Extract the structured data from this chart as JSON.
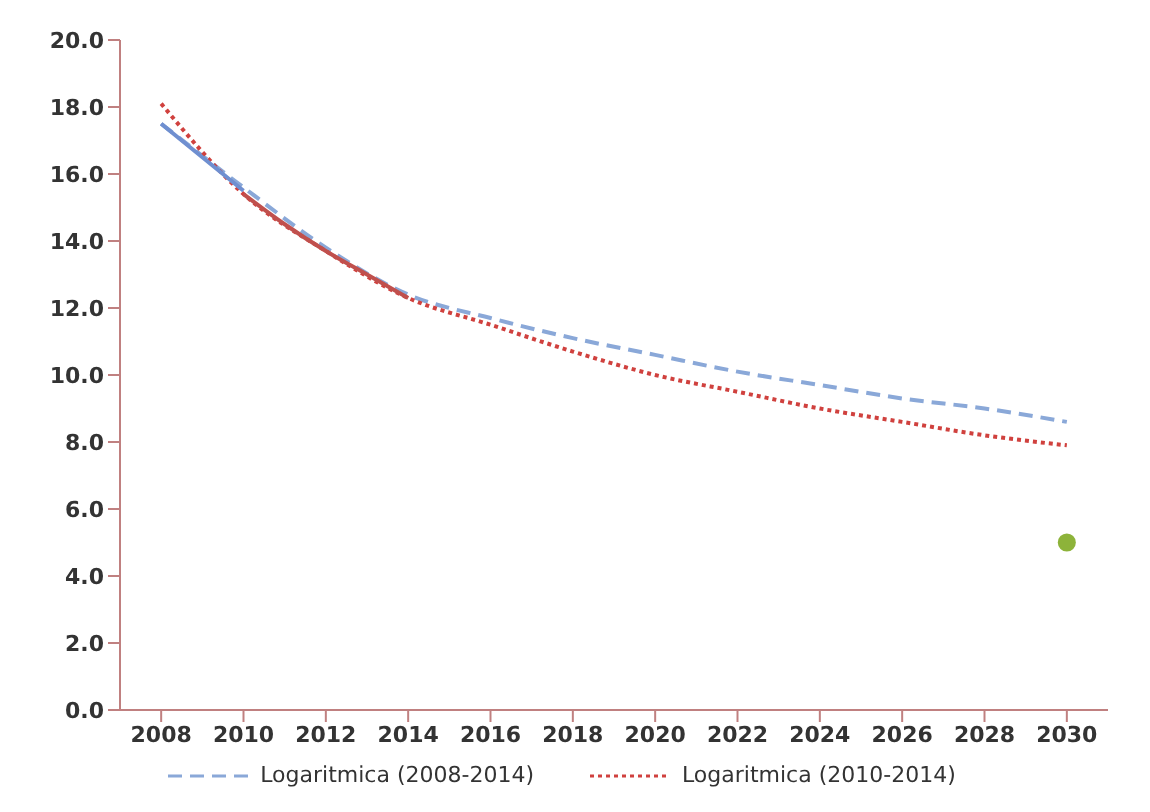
{
  "chart_data": {
    "type": "line",
    "xlim": [
      2007,
      2031
    ],
    "xticks": [
      2008,
      2010,
      2012,
      2014,
      2016,
      2018,
      2020,
      2022,
      2024,
      2026,
      2028,
      2030
    ],
    "ylim": [
      0,
      20
    ],
    "yticks": [
      {
        "value": 0,
        "label": "0.0"
      },
      {
        "value": 2,
        "label": "2.0"
      },
      {
        "value": 4,
        "label": "4.0"
      },
      {
        "value": 6,
        "label": "6.0"
      },
      {
        "value": 8,
        "label": "8.0"
      },
      {
        "value": 10,
        "label": "10.0"
      },
      {
        "value": 12,
        "label": "12.0"
      },
      {
        "value": 14,
        "label": "14.0"
      },
      {
        "value": 16,
        "label": "16.0"
      },
      {
        "value": 18,
        "label": "18.0"
      },
      {
        "value": 20,
        "label": "20.0"
      }
    ],
    "grid": false,
    "legend": "bottom",
    "marker": "none",
    "series": [
      {
        "name": "Logaritmica (2008-2014)",
        "color": "#8aa8d8",
        "line_style": "dashed",
        "x": [
          2008,
          2010,
          2012,
          2014,
          2016,
          2018,
          2020,
          2022,
          2024,
          2026,
          2028,
          2030
        ],
        "values": [
          17.5,
          15.6,
          13.8,
          12.4,
          11.7,
          11.1,
          10.6,
          10.1,
          9.7,
          9.3,
          9.0,
          8.6
        ]
      },
      {
        "name": "Logaritmica (2010-2014)",
        "color": "#d0413e",
        "line_style": "dotted",
        "x": [
          2008,
          2010,
          2012,
          2014,
          2016,
          2018,
          2020,
          2022,
          2024,
          2026,
          2028,
          2030
        ],
        "values": [
          18.1,
          15.4,
          13.7,
          12.3,
          11.5,
          10.7,
          10.0,
          9.5,
          9.0,
          8.6,
          8.2,
          7.9
        ]
      },
      {
        "color": "#6f8fd0",
        "line_style": "solid",
        "x": [
          2008,
          2009,
          2010
        ],
        "values": [
          17.5,
          16.5,
          15.5
        ]
      },
      {
        "color": "#c0504d",
        "line_style": "solid",
        "x": [
          2010,
          2011,
          2012,
          2013,
          2014
        ],
        "values": [
          15.4,
          14.5,
          13.7,
          13.0,
          12.3
        ]
      },
      {
        "type": "scatter",
        "marker": "circle",
        "color": "#8db33a",
        "x": [
          2030
        ],
        "values": [
          5.0
        ]
      }
    ]
  }
}
